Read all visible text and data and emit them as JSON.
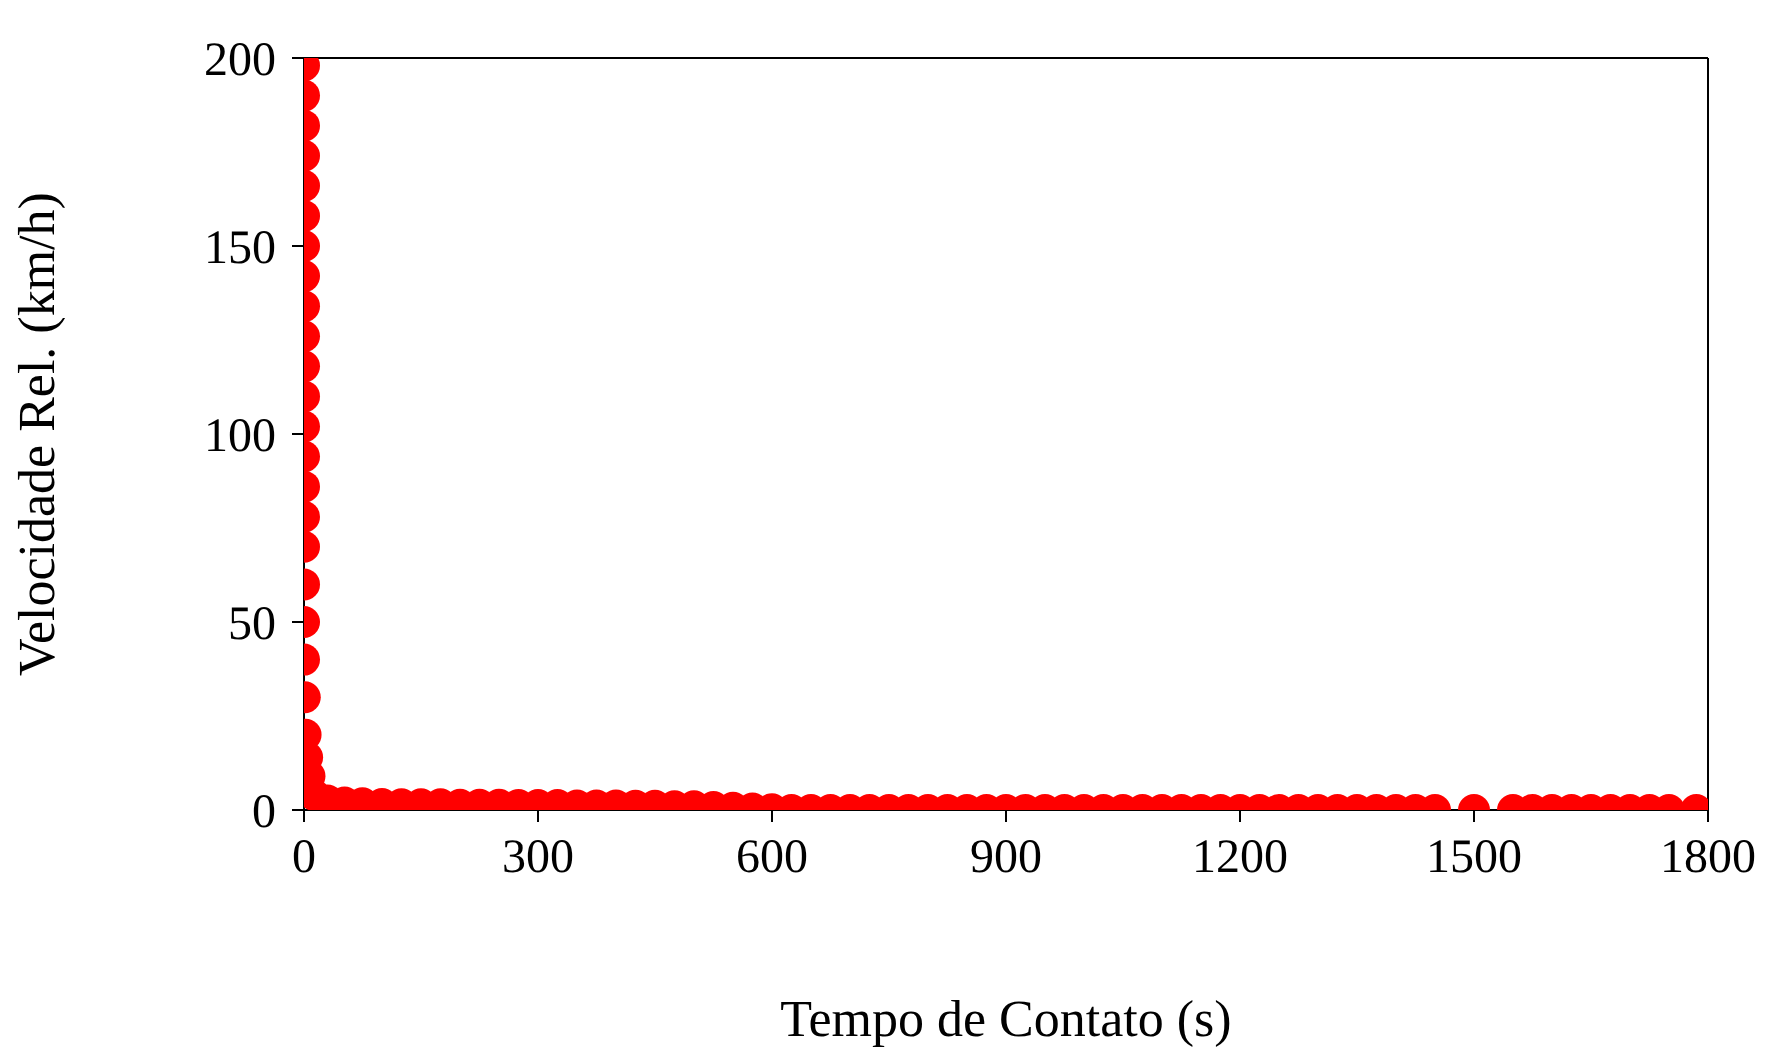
{
  "chart_data": {
    "type": "scatter",
    "xlabel": "Tempo de Contato (s)",
    "ylabel": "Velocidade Rel. (km/h)",
    "xlim": [
      0,
      1800
    ],
    "xticks": [
      0,
      300,
      600,
      900,
      1200,
      1500,
      1800
    ],
    "ylim": [
      0,
      200
    ],
    "yticks": [
      0,
      50,
      100,
      150,
      200
    ],
    "grid": false,
    "legend": false,
    "marker": "circle",
    "series": [
      {
        "color": "#ff0000",
        "x": [
          0,
          0,
          0,
          0,
          0,
          0,
          0,
          0,
          0,
          0,
          0,
          0,
          0,
          0,
          0,
          0,
          0,
          0,
          0,
          0,
          1,
          2,
          4,
          7,
          13,
          30,
          52,
          75,
          100,
          125,
          150,
          175,
          200,
          225,
          250,
          275,
          300,
          325,
          350,
          375,
          400,
          425,
          450,
          475,
          500,
          525,
          550,
          575,
          600,
          625,
          650,
          675,
          700,
          725,
          750,
          775,
          800,
          825,
          850,
          875,
          900,
          925,
          950,
          975,
          1000,
          1025,
          1050,
          1075,
          1100,
          1125,
          1150,
          1175,
          1200,
          1225,
          1250,
          1275,
          1300,
          1325,
          1350,
          1375,
          1400,
          1425,
          1450,
          1500,
          1550,
          1575,
          1600,
          1625,
          1650,
          1675,
          1700,
          1725,
          1750,
          1785
        ],
        "values": [
          198,
          190,
          182,
          174,
          166,
          158,
          150,
          142,
          134,
          126,
          118,
          110,
          102,
          94,
          86,
          78,
          70,
          60,
          50,
          40,
          30,
          20,
          14,
          9,
          4,
          2.5,
          2,
          1.8,
          1.6,
          1.5,
          1.5,
          1.5,
          1.4,
          1.4,
          1.4,
          1.3,
          1.3,
          1.3,
          1.2,
          1.2,
          1.2,
          1.1,
          1.1,
          1,
          1,
          0.8,
          0.6,
          0.4,
          0.2,
          0,
          0,
          0,
          0,
          0,
          0,
          0,
          0,
          0,
          0,
          0,
          0,
          0,
          0,
          0,
          0,
          0,
          0,
          0,
          0,
          0,
          0,
          0,
          0,
          0,
          0,
          0,
          0,
          0,
          0,
          0,
          0,
          0,
          0,
          0,
          0,
          0,
          0,
          0,
          0,
          0,
          0,
          0,
          0,
          0
        ]
      }
    ]
  }
}
